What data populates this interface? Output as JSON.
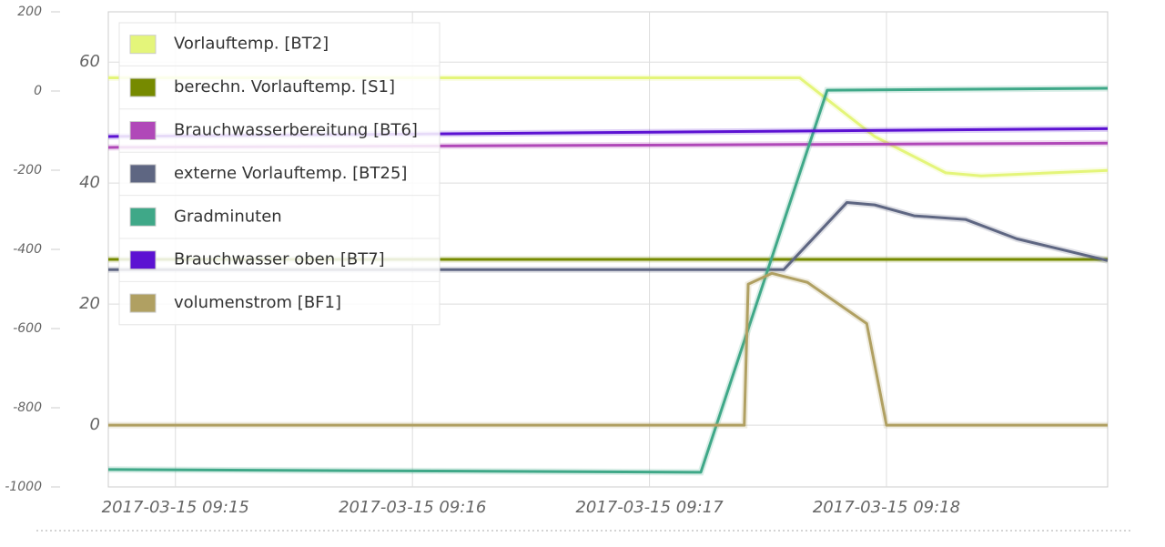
{
  "chart_data": {
    "type": "line",
    "xlim": [
      "2017-03-15 09:14:43",
      "2017-03-15 09:18:56"
    ],
    "xticks": [
      "2017-03-15 09:15",
      "2017-03-15 09:16",
      "2017-03-15 09:17",
      "2017-03-15 09:18"
    ],
    "ylim": [
      -10.2,
      68.3
    ],
    "yticks": [
      0,
      20,
      40,
      60
    ],
    "y2lim": [
      -1000,
      200
    ],
    "y2ticks": [
      -1000,
      -800,
      -600,
      -400,
      -200,
      0,
      200
    ],
    "grid": true,
    "legend": "top-left",
    "series": [
      {
        "name": "Vorlauftemp. [BT2]",
        "color": "#e4f57a",
        "x": [
          "2017-03-15 09:14:43",
          "2017-03-15 09:17:38",
          "2017-03-15 09:17:57",
          "2017-03-15 09:18:15",
          "2017-03-15 09:18:24",
          "2017-03-15 09:18:56"
        ],
        "values": [
          57.4,
          57.4,
          47.7,
          41.7,
          41.2,
          42.1
        ]
      },
      {
        "name": "berechn. Vorlauftemp. [S1]",
        "color": "#768a00",
        "x": [
          "2017-03-15 09:14:43",
          "2017-03-15 09:18:56"
        ],
        "values": [
          27.4,
          27.4
        ]
      },
      {
        "name": "Brauchwasserbereitung [BT6]",
        "color": "#b048b8",
        "x": [
          "2017-03-15 09:14:43",
          "2017-03-15 09:18:56"
        ],
        "values": [
          45.9,
          46.6
        ]
      },
      {
        "name": "externe Vorlauftemp. [BT25]",
        "color": "#5e6682",
        "x": [
          "2017-03-15 09:14:43",
          "2017-03-15 09:17:34",
          "2017-03-15 09:17:50",
          "2017-03-15 09:17:57",
          "2017-03-15 09:18:07",
          "2017-03-15 09:18:20",
          "2017-03-15 09:18:33",
          "2017-03-15 09:18:56"
        ],
        "values": [
          25.7,
          25.7,
          36.8,
          36.4,
          34.6,
          34.0,
          30.8,
          27.2
        ]
      },
      {
        "name": "Gradminuten",
        "color": "#3fa888",
        "axis": "y2",
        "x": [
          "2017-03-15 09:14:43",
          "2017-03-15 09:17:13",
          "2017-03-15 09:17:45",
          "2017-03-15 09:18:56"
        ],
        "values": [
          -956,
          -963,
          2,
          7
        ]
      },
      {
        "name": "Brauchwasser oben [BT7]",
        "color": "#5c12d2",
        "x": [
          "2017-03-15 09:14:43",
          "2017-03-15 09:18:56"
        ],
        "values": [
          47.7,
          49.0
        ]
      },
      {
        "name": "volumenstrom [BF1]",
        "color": "#b0a062",
        "x": [
          "2017-03-15 09:14:43",
          "2017-03-15 09:17:24",
          "2017-03-15 09:17:25",
          "2017-03-15 09:17:31",
          "2017-03-15 09:17:40",
          "2017-03-15 09:17:55",
          "2017-03-15 09:18:00",
          "2017-03-15 09:18:56"
        ],
        "values": [
          0,
          0,
          23.3,
          25.1,
          23.6,
          16.8,
          0,
          0
        ]
      }
    ]
  }
}
